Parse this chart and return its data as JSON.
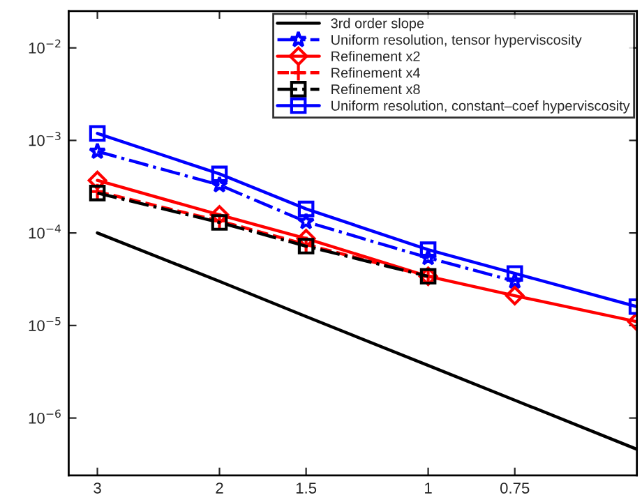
{
  "chart_data": {
    "type": "line",
    "x": [
      3,
      2,
      1.5,
      1,
      0.75,
      0.5
    ],
    "series": [
      {
        "name": "3rd order slope",
        "color": "#000000",
        "marker": "none",
        "line_style": "solid",
        "values": [
          0.0001,
          3e-05,
          1.25e-05,
          3.7e-06,
          1.56e-06,
          4.6e-07
        ]
      },
      {
        "name": "Uniform resolution, tensor hyperviscosity",
        "color": "#0000ff",
        "marker": "star",
        "line_style": "dashdot",
        "values": [
          0.00076,
          0.00033,
          0.000132,
          5.4e-05,
          3e-05,
          null
        ]
      },
      {
        "name": "Refinement x2",
        "color": "#ff0000",
        "marker": "diamond",
        "line_style": "solid",
        "values": [
          0.00037,
          0.000157,
          8.7e-05,
          3.4e-05,
          2.1e-05,
          1.1e-05
        ]
      },
      {
        "name": "Refinement x4",
        "color": "#ff0000",
        "marker": "cross",
        "line_style": "dashed",
        "values": [
          0.00028,
          0.000135,
          7.5e-05,
          3.4e-05,
          null,
          null
        ]
      },
      {
        "name": "Refinement x8",
        "color": "#000000",
        "marker": "square",
        "line_style": "dashdot",
        "values": [
          0.00027,
          0.00013,
          7.2e-05,
          3.4e-05,
          null,
          null
        ]
      },
      {
        "name": "Uniform resolution, constant–coef hyperviscosity",
        "color": "#0000ff",
        "marker": "square",
        "line_style": "solid",
        "values": [
          0.00119,
          0.000435,
          0.000182,
          6.6e-05,
          3.65e-05,
          1.6e-05
        ]
      }
    ],
    "log": "xy",
    "xlim": [
      3.3,
      0.5
    ],
    "xticks": [
      3,
      2,
      1.5,
      1,
      0.75
    ],
    "ylim": [
      2.4e-07,
      0.025
    ],
    "yticks": [
      {
        "value": 1e-06,
        "label": "10$^{−6}$"
      },
      {
        "value": 1e-05,
        "label": "10$^{−5}$"
      },
      {
        "value": 0.0001,
        "label": "10$^{−4}$"
      },
      {
        "value": 0.001,
        "label": "10$^{−3}$"
      },
      {
        "value": 0.01,
        "label": "10$^{−2}$"
      }
    ],
    "grid": false,
    "legend": "top right"
  }
}
